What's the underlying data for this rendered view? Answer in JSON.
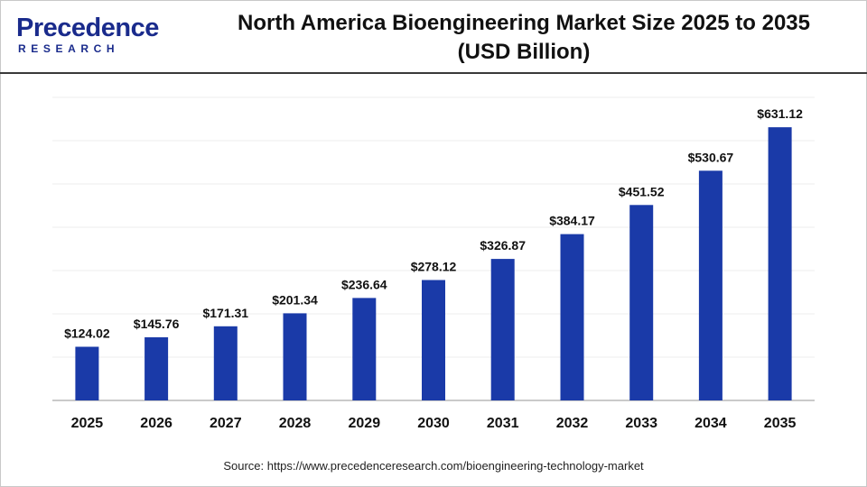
{
  "brand": {
    "name": "Precedence",
    "sub": "RESEARCH",
    "colors": {
      "primary": "#1a2b8c",
      "accent": "#4b8fd6"
    }
  },
  "header": {
    "title_line1": "North America Bioengineering Market Size 2025 to 2035",
    "title_line2": "(USD Billion)"
  },
  "source": "Source: https://www.precedenceresearch.com/bioengineering-technology-market",
  "chart_data": {
    "type": "bar",
    "title": "North America Bioengineering Market Size 2025 to 2035 (USD Billion)",
    "categories": [
      "2025",
      "2026",
      "2027",
      "2028",
      "2029",
      "2030",
      "2031",
      "2032",
      "2033",
      "2034",
      "2035"
    ],
    "values": [
      124.02,
      145.76,
      171.31,
      201.34,
      236.64,
      278.12,
      326.87,
      384.17,
      451.52,
      530.67,
      631.12
    ],
    "value_labels": [
      "$124.02",
      "$145.76",
      "$171.31",
      "$201.34",
      "$236.64",
      "$278.12",
      "$326.87",
      "$384.17",
      "$451.52",
      "$530.67",
      "$631.12"
    ],
    "xlabel": "",
    "ylabel": "",
    "ylim": [
      0,
      700
    ],
    "grid": true,
    "bar_color": "#1a3aa8"
  }
}
